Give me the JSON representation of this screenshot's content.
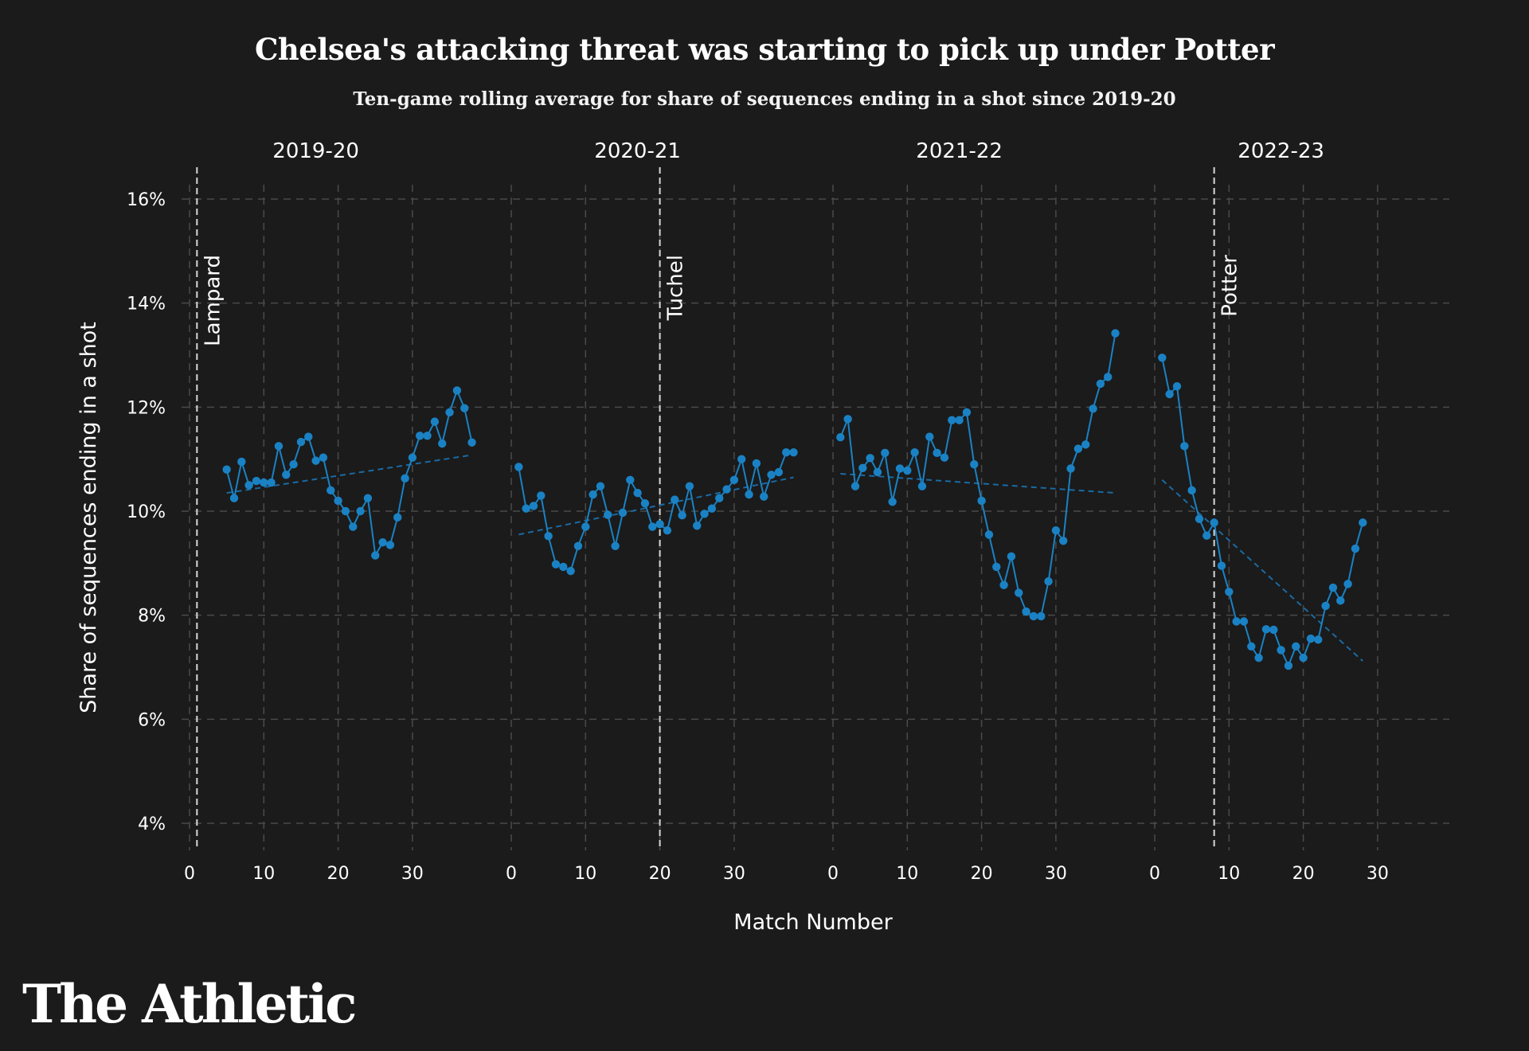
{
  "title": "Chelsea's attacking threat was starting to pick up under Potter",
  "subtitle": "Ten-game rolling average for share of sequences ending in a shot since 2019-20",
  "brand": "The Athletic",
  "colors": {
    "background": "#1b1b1b",
    "series": "#1a82c4",
    "trend": "#1a6aa3",
    "grid": "#4a4a4a",
    "text": "#ffffff"
  },
  "chart_data": {
    "type": "line",
    "xlabel": "Match Number",
    "ylabel": "Share of sequences ending in a shot",
    "ylim": [
      0.04,
      0.16
    ],
    "y_ticks": [
      0.04,
      0.06,
      0.08,
      0.1,
      0.12,
      0.14,
      0.16
    ],
    "y_tick_labels": [
      "4%",
      "6%",
      "8%",
      "10%",
      "12%",
      "14%",
      "16%"
    ],
    "x_ticks": [
      0,
      10,
      20,
      30
    ],
    "x_tick_labels": [
      "0",
      "10",
      "20",
      "30"
    ],
    "grid": true,
    "panels": [
      {
        "season": "2019-20",
        "manager_line": {
          "label": "Lampard",
          "x": 1
        },
        "x": [
          5,
          6,
          7,
          8,
          9,
          10,
          11,
          12,
          13,
          14,
          15,
          16,
          17,
          18,
          19,
          20,
          21,
          22,
          23,
          24,
          25,
          26,
          27,
          28,
          29,
          30,
          31,
          32,
          33,
          34,
          35,
          36,
          37,
          38
        ],
        "values": [
          0.108,
          0.1025,
          0.1095,
          0.105,
          0.1058,
          0.1055,
          0.1055,
          0.1125,
          0.107,
          0.109,
          0.1133,
          0.1143,
          0.1097,
          0.1103,
          0.104,
          0.102,
          0.1,
          0.097,
          0.1,
          0.1025,
          0.0915,
          0.094,
          0.0935,
          0.0988,
          0.1063,
          0.1103,
          0.1145,
          0.1145,
          0.1172,
          0.113,
          0.119,
          0.1232,
          0.1198,
          0.1132
        ],
        "trend": [
          0.1035,
          0.1108
        ]
      },
      {
        "season": "2020-21",
        "manager_line": {
          "label": "Tuchel",
          "x": 20
        },
        "x": [
          1,
          2,
          3,
          4,
          5,
          6,
          7,
          8,
          9,
          10,
          11,
          12,
          13,
          14,
          15,
          16,
          17,
          18,
          19,
          20,
          21,
          22,
          23,
          24,
          25,
          26,
          27,
          28,
          29,
          30,
          31,
          32,
          33,
          34,
          35,
          36,
          37,
          38
        ],
        "values": [
          0.1085,
          0.1005,
          0.101,
          0.103,
          0.0952,
          0.0898,
          0.0893,
          0.0885,
          0.0933,
          0.097,
          0.1032,
          0.1048,
          0.0993,
          0.0933,
          0.0997,
          0.106,
          0.1035,
          0.1015,
          0.097,
          0.0975,
          0.0963,
          0.1022,
          0.0992,
          0.1048,
          0.0972,
          0.0995,
          0.1005,
          0.1025,
          0.1042,
          0.106,
          0.11,
          0.1032,
          0.1092,
          0.1028,
          0.107,
          0.1075,
          0.1113,
          0.1113
        ],
        "trend": [
          0.0955,
          0.1065
        ]
      },
      {
        "season": "2021-22",
        "manager_line": null,
        "x": [
          1,
          2,
          3,
          4,
          5,
          6,
          7,
          8,
          9,
          10,
          11,
          12,
          13,
          14,
          15,
          16,
          17,
          18,
          19,
          20,
          21,
          22,
          23,
          24,
          25,
          26,
          27,
          28,
          29,
          30,
          31,
          32,
          33,
          34,
          35,
          36,
          37,
          38
        ],
        "values": [
          0.1142,
          0.1177,
          0.1048,
          0.1083,
          0.1102,
          0.1075,
          0.1112,
          0.1018,
          0.1082,
          0.1078,
          0.1113,
          0.1048,
          0.1143,
          0.1112,
          0.1103,
          0.1175,
          0.1175,
          0.119,
          0.109,
          0.102,
          0.0955,
          0.0893,
          0.0858,
          0.0913,
          0.0843,
          0.0807,
          0.0798,
          0.0798,
          0.0865,
          0.0963,
          0.0943,
          0.1082,
          0.112,
          0.1128,
          0.1197,
          0.1245,
          0.1258,
          0.1342
        ],
        "trend": [
          0.1072,
          0.1035
        ]
      },
      {
        "season": "2022-23",
        "manager_line": {
          "label": "Potter",
          "x": 8
        },
        "x": [
          1,
          2,
          3,
          4,
          5,
          6,
          7,
          8,
          9,
          10,
          11,
          12,
          13,
          14,
          15,
          16,
          17,
          18,
          19,
          20,
          21,
          22,
          23,
          24,
          25,
          26,
          27,
          28
        ],
        "values": [
          0.1295,
          0.1225,
          0.124,
          0.1125,
          0.104,
          0.0985,
          0.0953,
          0.0978,
          0.0895,
          0.0845,
          0.0788,
          0.0788,
          0.074,
          0.0718,
          0.0773,
          0.0772,
          0.0733,
          0.0703,
          0.074,
          0.0718,
          0.0755,
          0.0753,
          0.0818,
          0.0853,
          0.0828,
          0.086,
          0.0928,
          0.0978
        ],
        "trend": [
          0.106,
          0.0712
        ]
      }
    ]
  }
}
